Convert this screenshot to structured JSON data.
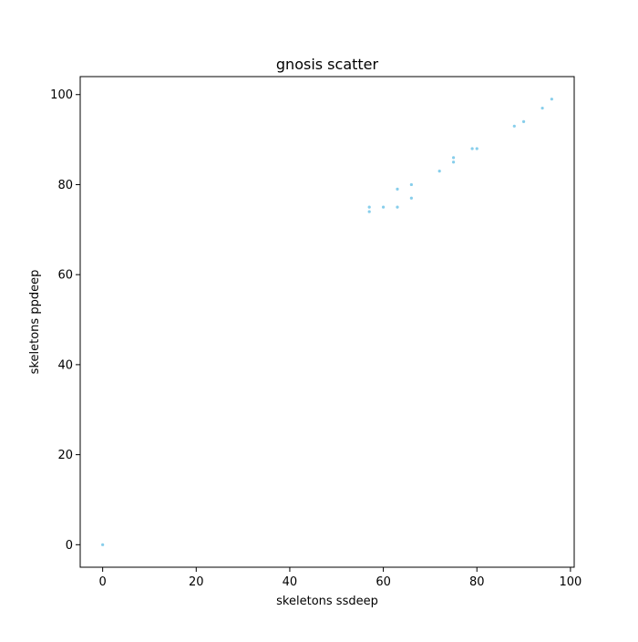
{
  "chart_data": {
    "type": "scatter",
    "title": "gnosis scatter",
    "xlabel": "skeletons ssdeep",
    "ylabel": "skeletons ppdeep",
    "xlim": [
      -4.8,
      100.8
    ],
    "ylim": [
      -5,
      104
    ],
    "xticks": [
      "0",
      "20",
      "40",
      "60",
      "80",
      "100"
    ],
    "yticks": [
      "0",
      "20",
      "40",
      "60",
      "80",
      "100"
    ],
    "grid": false,
    "point_color": "#87ceeb",
    "points": [
      {
        "x": 0,
        "y": 0
      },
      {
        "x": 57,
        "y": 74
      },
      {
        "x": 57,
        "y": 75
      },
      {
        "x": 60,
        "y": 75
      },
      {
        "x": 63,
        "y": 75
      },
      {
        "x": 63,
        "y": 79
      },
      {
        "x": 66,
        "y": 77
      },
      {
        "x": 66,
        "y": 80
      },
      {
        "x": 72,
        "y": 83
      },
      {
        "x": 75,
        "y": 85
      },
      {
        "x": 75,
        "y": 86
      },
      {
        "x": 79,
        "y": 88
      },
      {
        "x": 80,
        "y": 88
      },
      {
        "x": 88,
        "y": 93
      },
      {
        "x": 90,
        "y": 94
      },
      {
        "x": 94,
        "y": 97
      },
      {
        "x": 96,
        "y": 99
      }
    ]
  }
}
